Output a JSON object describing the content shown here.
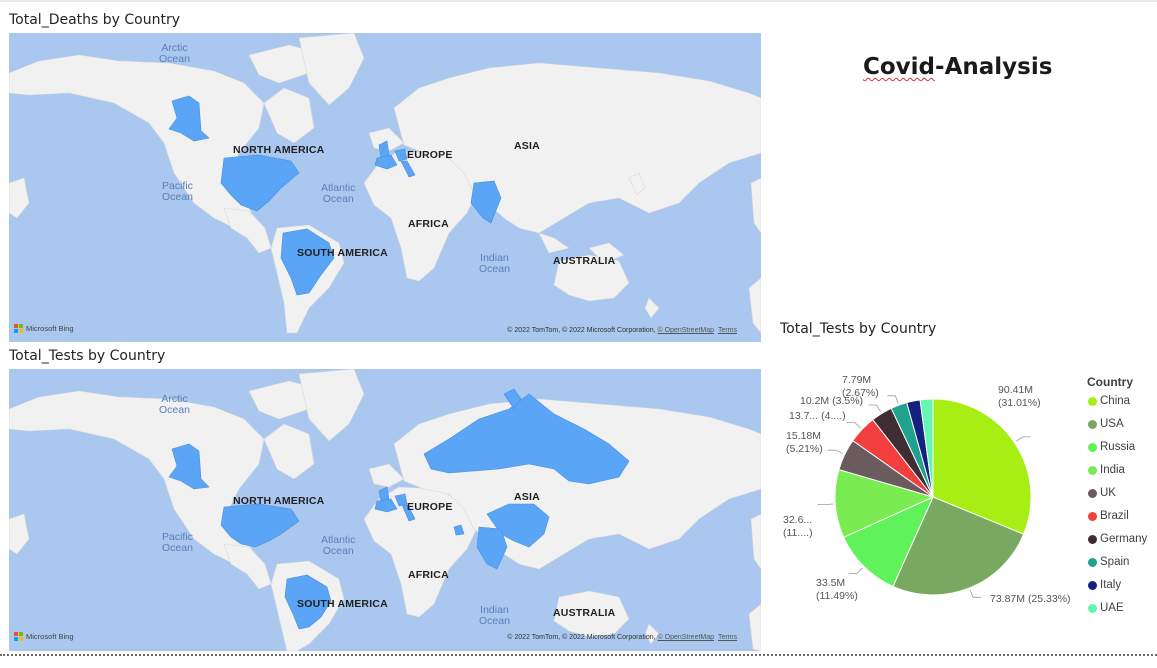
{
  "dashboard": {
    "title_part1": "Covid",
    "title_part2": "-Analysis"
  },
  "maps": {
    "deaths": {
      "title": "Total_Deaths by Country",
      "highlight_color": "#5aa5f5",
      "highlighted": [
        "USA",
        "Brazil",
        "India",
        "UK",
        "Germany",
        "Spain",
        "Italy"
      ]
    },
    "tests": {
      "title": "Total_Tests by Country",
      "highlight_color": "#5aa5f5",
      "highlighted": [
        "USA",
        "Brazil",
        "India",
        "Russia",
        "China",
        "UK",
        "Germany",
        "Spain",
        "Italy",
        "UAE"
      ]
    },
    "oceans": {
      "arctic": [
        "Arctic",
        "Ocean"
      ],
      "pacific": [
        "Pacific",
        "Ocean"
      ],
      "atlantic": [
        "Atlantic",
        "Ocean"
      ],
      "indian": [
        "Indian",
        "Ocean"
      ]
    },
    "continents": {
      "north_america": "NORTH AMERICA",
      "south_america": "SOUTH AMERICA",
      "europe": "EUROPE",
      "asia": "ASIA",
      "africa": "AFRICA",
      "australia": "AUSTRALIA"
    },
    "attribution": "Microsoft Bing",
    "copyright_prefix": "© 2022 TomTom, © 2022 Microsoft Corporation, ",
    "copyright_osm": "© OpenStreetMap",
    "copyright_terms": "Terms"
  },
  "pie": {
    "title": "Total_Tests by Country",
    "legend_title": "Country"
  },
  "chart_data": {
    "type": "pie",
    "title": "Total_Tests by Country",
    "legend_title": "Country",
    "legend_position": "right",
    "slices": [
      {
        "label": "China",
        "value_text": "90.41M",
        "value": 90.41,
        "percent": 31.01,
        "color": "#a6ee14",
        "data_label": [
          "90.41M",
          "(31.01%)"
        ]
      },
      {
        "label": "USA",
        "value_text": "73.87M",
        "value": 73.87,
        "percent": 25.33,
        "color": "#79a861",
        "data_label": [
          "73.87M (25.33%)"
        ]
      },
      {
        "label": "Russia",
        "value_text": "33.5M",
        "value": 33.5,
        "percent": 11.49,
        "color": "#5ff25a",
        "data_label": [
          "33.5M",
          "(11.49%)"
        ]
      },
      {
        "label": "India",
        "value_text": "32.6...",
        "value": 32.6,
        "percent": 11.18,
        "color": "#7aec52",
        "data_label": [
          "32.6...",
          "(11....)"
        ]
      },
      {
        "label": "UK",
        "value_text": "15.18M",
        "value": 15.18,
        "percent": 5.21,
        "color": "#6a5b5e",
        "data_label": [
          "15.18M",
          "(5.21%)"
        ]
      },
      {
        "label": "Brazil",
        "value_text": "13.7...",
        "value": 13.7,
        "percent": 4.7,
        "color": "#f23e3f",
        "data_label": [
          "13.7... (4....)"
        ]
      },
      {
        "label": "Germany",
        "value_text": "10.2M",
        "value": 10.2,
        "percent": 3.5,
        "color": "#3f2d33",
        "data_label": [
          "10.2M (3.5%)"
        ]
      },
      {
        "label": "Spain",
        "value_text": "7.79M",
        "value": 7.79,
        "percent": 2.67,
        "color": "#1fa28e",
        "data_label": [
          "7.79M",
          "(2.67%)"
        ]
      },
      {
        "label": "Italy",
        "value_text": "",
        "value": 6.4,
        "percent": 2.2,
        "color": "#14217e",
        "data_label": []
      },
      {
        "label": "UAE",
        "value_text": "",
        "value": 6.1,
        "percent": 2.1,
        "color": "#63f5b1",
        "data_label": []
      }
    ]
  }
}
